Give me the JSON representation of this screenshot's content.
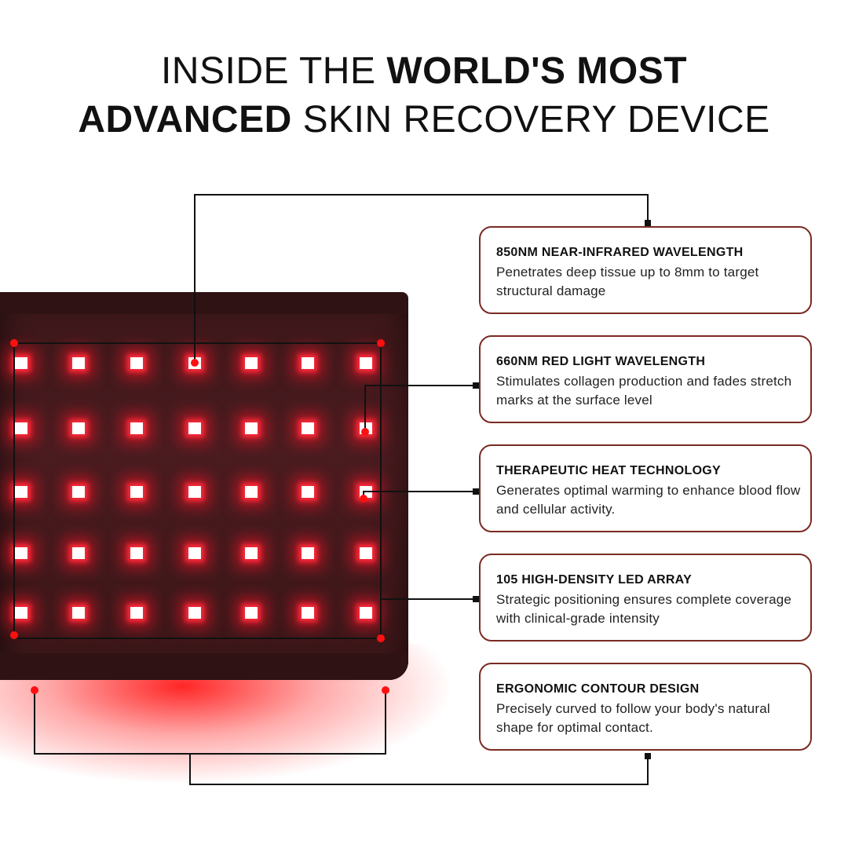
{
  "title": {
    "line1_light": "INSIDE THE ",
    "line1_bold": "WORLD'S MOST",
    "line2_bold": "ADVANCED",
    "line2_light": " SKIN RECOVERY DEVICE"
  },
  "colors": {
    "card_border": "#7a2a22",
    "led_red": "#ff2a3a",
    "device": "#3b1719"
  },
  "features": [
    {
      "title": "850NM NEAR-INFRARED WAVELENGTH",
      "description": "Penetrates deep tissue up to 8mm to target structural damage"
    },
    {
      "title": "660NM RED LIGHT WAVELENGTH",
      "description": "Stimulates collagen production and fades stretch marks at the surface level"
    },
    {
      "title": "THERAPEUTIC HEAT TECHNOLOGY",
      "description": "Generates optimal warming to enhance blood flow and cellular activity."
    },
    {
      "title": "105 HIGH-DENSITY LED ARRAY",
      "description": "Strategic positioning ensures complete coverage with clinical-grade intensity"
    },
    {
      "title": "ERGONOMIC CONTOUR DESIGN",
      "description": "Precisely curved to follow your body's natural shape for optimal contact."
    }
  ]
}
